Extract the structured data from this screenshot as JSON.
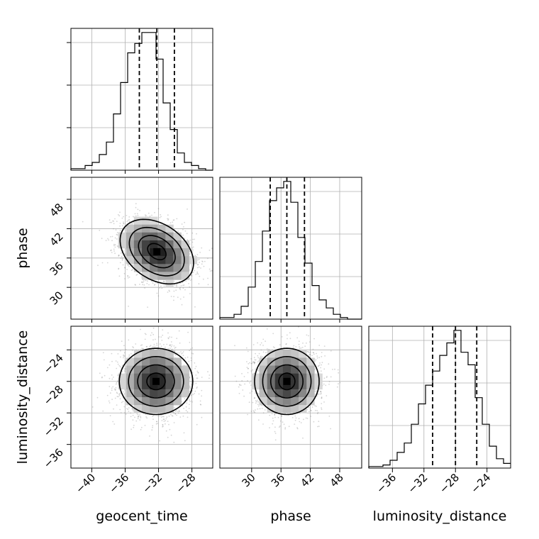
{
  "chart_data": {
    "type": "corner",
    "parameters": [
      "geocent_time",
      "phase",
      "luminosity_distance"
    ],
    "axis_ranges": {
      "geocent_time": [
        -42.5,
        -25.5
      ],
      "phase": [
        23.5,
        52.5
      ],
      "luminosity_distance": [
        -39.0,
        -21.0
      ]
    },
    "ticks": {
      "geocent_time": [
        "-40",
        "-36",
        "-32",
        "-28"
      ],
      "phase": [
        "30",
        "36",
        "42",
        "48"
      ],
      "luminosity_distance": [
        "-36",
        "-32",
        "-28",
        "-24"
      ]
    },
    "grid": true,
    "quantiles": {
      "geocent_time": [
        -34.3,
        -32.2,
        -30.1
      ],
      "phase": [
        33.8,
        37.2,
        40.8
      ],
      "luminosity_distance": [
        -30.9,
        -28.0,
        -25.3
      ]
    },
    "histograms": {
      "geocent_time": {
        "edges_range": [
          -42.5,
          -25.5
        ],
        "counts": [
          1,
          1,
          3,
          5,
          10,
          18,
          36,
          56,
          75,
          81,
          88,
          88,
          71,
          43,
          26,
          11,
          5,
          3,
          1,
          0
        ]
      },
      "phase": {
        "edges_range": [
          23.5,
          52.5
        ],
        "counts": [
          1,
          1,
          3,
          8,
          20,
          36,
          55,
          74,
          82,
          86,
          73,
          51,
          35,
          21,
          12,
          7,
          3,
          1,
          0,
          0
        ]
      },
      "luminosity_distance": {
        "edges_range": [
          -39.0,
          -21.0
        ],
        "counts": [
          1,
          1,
          2,
          5,
          10,
          16,
          28,
          41,
          53,
          62,
          72,
          80,
          88,
          74,
          66,
          45,
          28,
          14,
          6,
          3
        ]
      }
    },
    "two_d": [
      {
        "x": "geocent_time",
        "y": "phase",
        "mean": [
          -32.2,
          37.3
        ],
        "std": [
          2.2,
          3.3
        ],
        "corr": -0.35
      },
      {
        "x": "geocent_time",
        "y": "luminosity_distance",
        "mean": [
          -32.3,
          -28.0
        ],
        "std": [
          2.1,
          2.2
        ],
        "corr": 0.0
      },
      {
        "x": "phase",
        "y": "luminosity_distance",
        "mean": [
          37.2,
          -28.0
        ],
        "std": [
          3.3,
          2.1
        ],
        "corr": 0.0
      }
    ]
  }
}
